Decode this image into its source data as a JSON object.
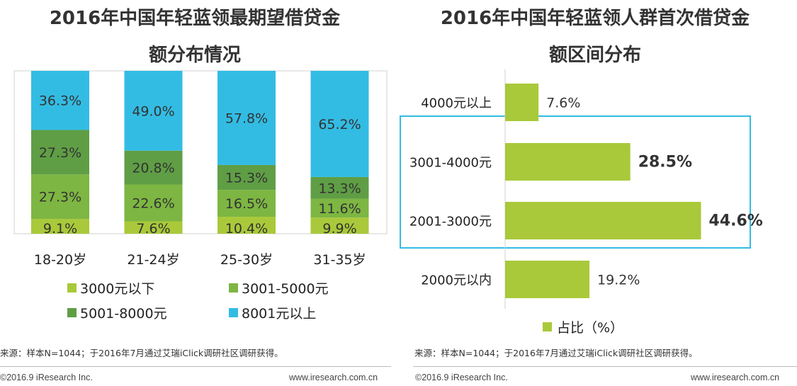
{
  "left_chart": {
    "title_line1": "2016年中国年轻蓝领最期望借贷金",
    "title_line2": "额分布情况",
    "source": "来源：样本N=1044；于2016年7月通过艾瑞iClick调研社区调研获得。",
    "footer_left": "©2016.9 iResearch Inc.",
    "footer_right": "www.iresearch.com.cn"
  },
  "right_chart": {
    "title_line1": "2016年中国年轻蓝领人群首次借贷金",
    "title_line2": "额区间分布",
    "source": "来源：样本N=1044；于2016年7月通过艾瑞iClick调研社区调研获得。",
    "footer_left": "©2016.9 iResearch Inc.",
    "footer_right": "www.iresearch.com.cn"
  },
  "colors": {
    "light_green": "#a9c93a",
    "mid_green": "#7db642",
    "dark_green": "#5f9e45",
    "blue": "#33bce3",
    "highlight_border": "#33bce3"
  },
  "chart_data": [
    {
      "type": "bar",
      "stacked": true,
      "percent": true,
      "categories": [
        "18-20岁",
        "21-24岁",
        "25-30岁",
        "31-35岁"
      ],
      "series": [
        {
          "name": "3000元以下",
          "values": [
            9.1,
            7.6,
            10.4,
            9.9
          ],
          "labels": [
            "9.1%",
            "7.6%",
            "10.4%",
            "9.9%"
          ],
          "color": "#a9c93a"
        },
        {
          "name": "3001-5000元",
          "values": [
            27.3,
            22.6,
            16.5,
            11.6
          ],
          "labels": [
            "27.3%",
            "22.6%",
            "16.5%",
            "11.6%"
          ],
          "color": "#7db642"
        },
        {
          "name": "5001-8000元",
          "values": [
            27.3,
            20.8,
            15.3,
            13.3
          ],
          "labels": [
            "27.3%",
            "20.8%",
            "15.3%",
            "13.3%"
          ],
          "color": "#5f9e45"
        },
        {
          "name": "8001元以上",
          "values": [
            36.3,
            49.0,
            57.8,
            65.2
          ],
          "labels": [
            "36.3%",
            "49.0%",
            "57.8%",
            "65.2%"
          ],
          "color": "#33bce3"
        }
      ],
      "ylim": [
        0,
        100
      ],
      "legend": "bottom"
    },
    {
      "type": "bar",
      "orientation": "horizontal",
      "categories": [
        "4000元以上",
        "3001-4000元",
        "2001-3000元",
        "2000元以内"
      ],
      "series": [
        {
          "name": "占比（%）",
          "values": [
            7.6,
            28.5,
            44.6,
            19.2
          ],
          "labels": [
            "7.6%",
            "28.5%",
            "44.6%",
            "19.2%"
          ],
          "color": "#a9c93a"
        }
      ],
      "highlighted": [
        "3001-4000元",
        "2001-3000元"
      ],
      "legend": "bottom"
    }
  ]
}
